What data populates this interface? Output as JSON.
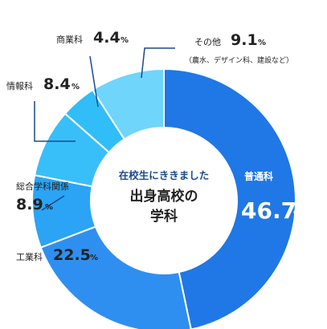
{
  "chart_data": {
    "type": "pie",
    "center_title": {
      "subtitle": "在校生にききました",
      "line1": "出身高校の",
      "line2": "学科"
    },
    "unit": "%",
    "categories": [
      "普通科",
      "工業科",
      "総合学科関係",
      "情報科",
      "商業科",
      "その他"
    ],
    "values": [
      46.7,
      22.5,
      8.9,
      8.4,
      4.4,
      9.1
    ],
    "value_labels": [
      "46.7",
      "22.5",
      "8.9",
      "8.4",
      "4.4",
      "9.1"
    ],
    "notes": [
      "",
      "",
      "",
      "",
      "",
      "（農水、デザイン科、建設など）"
    ],
    "colors": [
      "#1f78e6",
      "#2f8ff0",
      "#2ba4f5",
      "#38bff9",
      "#31bdf8",
      "#6fd5fb"
    ],
    "accent": "#1a4a8c"
  }
}
